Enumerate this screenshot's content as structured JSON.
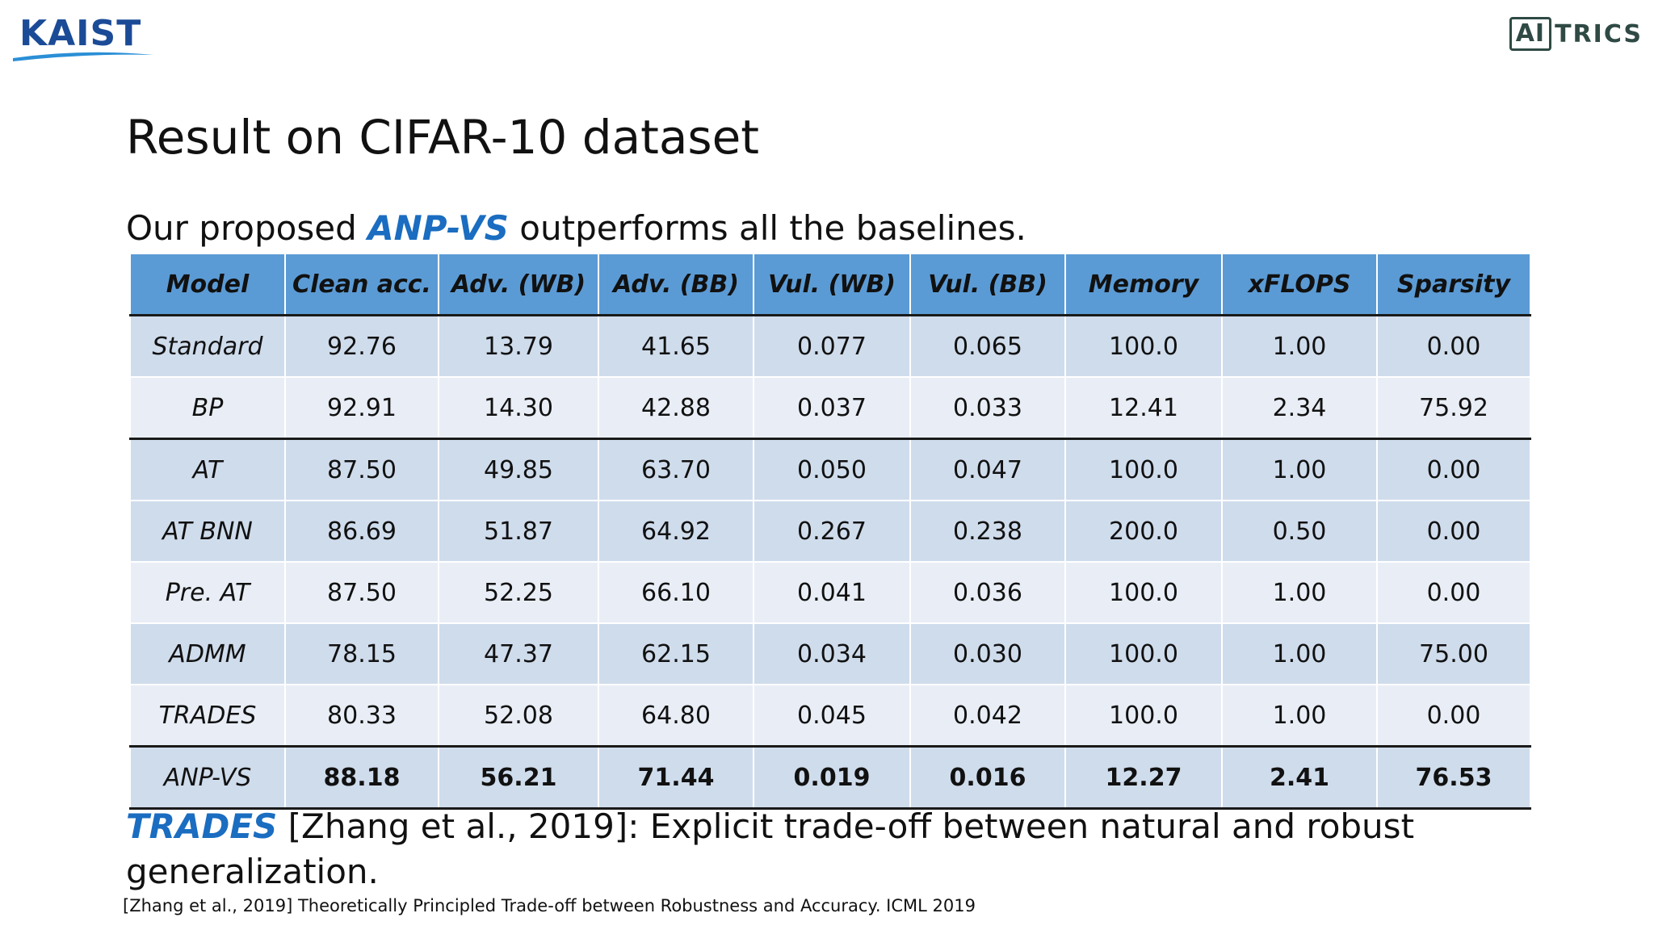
{
  "logos": {
    "left": "KAIST",
    "right_boxed": "AI",
    "right_rest": "TRICS"
  },
  "title": "Result on CIFAR-10 dataset",
  "subtitle": {
    "prefix": "Our proposed ",
    "highlight": "ANP-VS",
    "suffix": " outperforms all the baselines."
  },
  "table": {
    "headers": [
      "Model",
      "Clean acc.",
      "Adv.  (WB)",
      "Adv.  (BB)",
      "Vul. (WB)",
      "Vul. (BB)",
      "Memory",
      "xFLOPS",
      "Sparsity"
    ],
    "rows": [
      {
        "model": "Standard",
        "values": [
          "92.76",
          "13.79",
          "41.65",
          "0.077",
          "0.065",
          "100.0",
          "1.00",
          "0.00"
        ]
      },
      {
        "model": "BP",
        "values": [
          "92.91",
          "14.30",
          "42.88",
          "0.037",
          "0.033",
          "12.41",
          "2.34",
          "75.92"
        ]
      },
      {
        "model": "AT",
        "values": [
          "87.50",
          "49.85",
          "63.70",
          "0.050",
          "0.047",
          "100.0",
          "1.00",
          "0.00"
        ]
      },
      {
        "model": "AT BNN",
        "values": [
          "86.69",
          "51.87",
          "64.92",
          "0.267",
          "0.238",
          "200.0",
          "0.50",
          "0.00"
        ]
      },
      {
        "model": "Pre. AT",
        "values": [
          "87.50",
          "52.25",
          "66.10",
          "0.041",
          "0.036",
          "100.0",
          "1.00",
          "0.00"
        ]
      },
      {
        "model": "ADMM",
        "values": [
          "78.15",
          "47.37",
          "62.15",
          "0.034",
          "0.030",
          "100.0",
          "1.00",
          "75.00"
        ]
      },
      {
        "model": "TRADES",
        "values": [
          "80.33",
          "52.08",
          "64.80",
          "0.045",
          "0.042",
          "100.0",
          "1.00",
          "0.00"
        ]
      },
      {
        "model": "ANP-VS",
        "values": [
          "88.18",
          "56.21",
          "71.44",
          "0.019",
          "0.016",
          "12.27",
          "2.41",
          "76.53"
        ]
      }
    ]
  },
  "note": {
    "highlight": "TRADES",
    "text": " [Zhang et al., 2019]: Explicit trade-off between natural and robust generalization."
  },
  "reference": "[Zhang et al., 2019] Theoretically Principled Trade-off between Robustness and Accuracy. ICML 2019",
  "colors": {
    "header_bg": "#5b9bd5",
    "row_dark": "#cfdcec",
    "row_light": "#e9eef6",
    "accent_blue": "#1a6dc0",
    "best_red": "#c00000"
  }
}
